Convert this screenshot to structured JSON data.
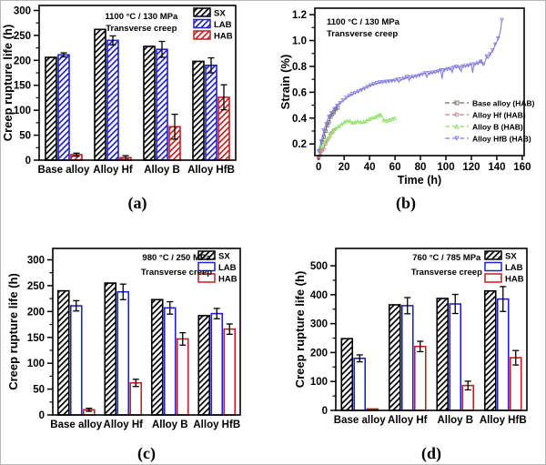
{
  "figure": {
    "background": "#ffffff",
    "accent_blue": "#2121cc",
    "accent_red": "#c22020"
  },
  "chart_data": [
    {
      "type": "bar",
      "panel": "a",
      "panel_label": "(a)",
      "title_lines": [
        "1100 °C / 130 MPa",
        "Transverse creep"
      ],
      "ylabel": "Creep rupture life (h)",
      "ylim": [
        0,
        310
      ],
      "yticks": [
        0,
        50,
        100,
        150,
        200,
        250,
        300
      ],
      "ytick_labels": [
        "0",
        "50",
        "100",
        "150",
        "200",
        "250",
        "300"
      ],
      "categories": [
        "Base alloy",
        "Alloy Hf",
        "Alloy B",
        "Alloy HfB"
      ],
      "legend_position": "top-right",
      "series": [
        {
          "name": "SX",
          "color": "#000000",
          "fill": "hatch",
          "values": [
            206,
            262,
            228,
            198
          ],
          "errors": [
            0,
            0,
            0,
            0
          ]
        },
        {
          "name": "LAB",
          "color": "#2121cc",
          "fill": "hatch",
          "values": [
            211,
            240,
            222,
            190
          ],
          "errors": [
            4,
            9,
            16,
            15
          ]
        },
        {
          "name": "HAB",
          "color": "#c22020",
          "fill": "hatch",
          "values": [
            11,
            5,
            67,
            126
          ],
          "errors": [
            3,
            4,
            25,
            25
          ]
        }
      ]
    },
    {
      "type": "line",
      "panel": "b",
      "panel_label": "(b)",
      "title_lines": [
        "1100 °C / 130 MPa",
        "Transverse creep"
      ],
      "xlabel": "Time (h)",
      "ylabel": "Strain (%)",
      "xlim": [
        -3,
        161.5
      ],
      "xticks": [
        0,
        20,
        40,
        60,
        80,
        100,
        120,
        140,
        160
      ],
      "xtick_labels": [
        "0",
        "20",
        "40",
        "60",
        "80",
        "100",
        "120",
        "140",
        "160"
      ],
      "ylim": [
        0.11,
        1.25
      ],
      "yticks": [
        0.2,
        0.4,
        0.6,
        0.8,
        1.0,
        1.2
      ],
      "ytick_labels": [
        "0.2",
        "0.4",
        "0.6",
        "0.8",
        "1.0",
        "1.2"
      ],
      "legend_position": "middle-right",
      "series": [
        {
          "name": "Base alloy (HAB)",
          "color": "#6b6b6b",
          "marker": "square",
          "points": [
            [
              0,
              0.1
            ],
            [
              2,
              0.18
            ],
            [
              4,
              0.26
            ],
            [
              6,
              0.32
            ],
            [
              8,
              0.375
            ],
            [
              10,
              0.42
            ],
            [
              12,
              0.45
            ],
            [
              14,
              0.47
            ],
            [
              15,
              0.48
            ]
          ]
        },
        {
          "name": "Alloy Hf (HAB)",
          "color": "#c98282",
          "marker": "circle",
          "points": [
            [
              0,
              0.09
            ],
            [
              2,
              0.13
            ],
            [
              4,
              0.17
            ],
            [
              6,
              0.21
            ],
            [
              8,
              0.25
            ],
            [
              10,
              0.285
            ],
            [
              12,
              0.31
            ],
            [
              13,
              0.32
            ]
          ]
        },
        {
          "name": "Alloy B (HAB)",
          "color": "#8fe268",
          "marker": "triangle-up",
          "points": [
            [
              0,
              0.15
            ],
            [
              3,
              0.185
            ],
            [
              6,
              0.23
            ],
            [
              9,
              0.265
            ],
            [
              12,
              0.3
            ],
            [
              15,
              0.33
            ],
            [
              18,
              0.355
            ],
            [
              21,
              0.37
            ],
            [
              23,
              0.38
            ],
            [
              25,
              0.37
            ],
            [
              27,
              0.36
            ],
            [
              30,
              0.37
            ],
            [
              33,
              0.365
            ],
            [
              36,
              0.375
            ],
            [
              39,
              0.385
            ],
            [
              42,
              0.4
            ],
            [
              45,
              0.415
            ],
            [
              48,
              0.428
            ],
            [
              50,
              0.41
            ],
            [
              51,
              0.385
            ],
            [
              54,
              0.387
            ],
            [
              57,
              0.392
            ],
            [
              60,
              0.4
            ]
          ]
        },
        {
          "name": "Alloy HfB (HAB)",
          "color": "#857ce0",
          "marker": "triangle-down",
          "points": [
            [
              0,
              0.14
            ],
            [
              2,
              0.22
            ],
            [
              4,
              0.3
            ],
            [
              6,
              0.36
            ],
            [
              8,
              0.41
            ],
            [
              10,
              0.445
            ],
            [
              13,
              0.48
            ],
            [
              16,
              0.51
            ],
            [
              20,
              0.545
            ],
            [
              24,
              0.575
            ],
            [
              28,
              0.595
            ],
            [
              32,
              0.615
            ],
            [
              36,
              0.632
            ],
            [
              40,
              0.648
            ],
            [
              44,
              0.66
            ],
            [
              48,
              0.67
            ],
            [
              52,
              0.68
            ],
            [
              56,
              0.688
            ],
            [
              60,
              0.695
            ],
            [
              62,
              0.7
            ],
            [
              63,
              0.675
            ],
            [
              64,
              0.7
            ],
            [
              68,
              0.71
            ],
            [
              70,
              0.715
            ],
            [
              71,
              0.69
            ],
            [
              72,
              0.715
            ],
            [
              76,
              0.725
            ],
            [
              80,
              0.735
            ],
            [
              84,
              0.745
            ],
            [
              85,
              0.715
            ],
            [
              86,
              0.745
            ],
            [
              90,
              0.755
            ],
            [
              94,
              0.765
            ],
            [
              96,
              0.77
            ],
            [
              97,
              0.7
            ],
            [
              98,
              0.772
            ],
            [
              102,
              0.78
            ],
            [
              104,
              0.785
            ],
            [
              105,
              0.755
            ],
            [
              106,
              0.786
            ],
            [
              110,
              0.795
            ],
            [
              112,
              0.765
            ],
            [
              113,
              0.8
            ],
            [
              117,
              0.81
            ],
            [
              120,
              0.817
            ],
            [
              121,
              0.752
            ],
            [
              122,
              0.82
            ],
            [
              126,
              0.83
            ],
            [
              128,
              0.84
            ],
            [
              130,
              0.812
            ],
            [
              131,
              0.85
            ],
            [
              132,
              0.872
            ],
            [
              133,
              0.862
            ],
            [
              134,
              0.88
            ],
            [
              136,
              0.91
            ],
            [
              138,
              0.95
            ],
            [
              140,
              0.99
            ],
            [
              141,
              1.01
            ],
            [
              142,
              1.04
            ],
            [
              143,
              1.08
            ],
            [
              144,
              1.16
            ]
          ]
        }
      ]
    },
    {
      "type": "bar",
      "panel": "c",
      "panel_label": "(c)",
      "title_lines": [
        "980 °C / 250 MPa",
        "Transverse creep"
      ],
      "ylabel": "Creep rupture life (h)",
      "ylim": [
        0,
        322
      ],
      "yticks": [
        0,
        50,
        100,
        150,
        200,
        250,
        300
      ],
      "ytick_labels": [
        "0",
        "50",
        "100",
        "150",
        "200",
        "250",
        "300"
      ],
      "categories": [
        "Base alloy",
        "Alloy Hf",
        "Alloy B",
        "Alloy HfB"
      ],
      "legend_position": "top-right",
      "series": [
        {
          "name": "SX",
          "color": "#000000",
          "fill": "hatch",
          "values": [
            240,
            255,
            223,
            192
          ],
          "errors": [
            0,
            0,
            0,
            0
          ]
        },
        {
          "name": "LAB",
          "color": "#2121cc",
          "fill": "open",
          "values": [
            211,
            238,
            207,
            196
          ],
          "errors": [
            10,
            15,
            12,
            10
          ]
        },
        {
          "name": "HAB",
          "color": "#c22020",
          "fill": "open",
          "values": [
            10,
            62,
            147,
            166
          ],
          "errors": [
            3,
            7,
            12,
            10
          ]
        }
      ]
    },
    {
      "type": "bar",
      "panel": "d",
      "panel_label": "(d)",
      "title_lines": [
        "760 °C / 785 MPa",
        "Transverse creep"
      ],
      "ylabel": "Creep rupture life (h)",
      "ylim": [
        0,
        560
      ],
      "yticks": [
        0,
        100,
        200,
        300,
        400,
        500
      ],
      "ytick_labels": [
        "0",
        "100",
        "200",
        "300",
        "400",
        "500"
      ],
      "categories": [
        "Base alloy",
        "Alloy Hf",
        "Alloy B",
        "Alloy HfB"
      ],
      "legend_position": "top-right",
      "series": [
        {
          "name": "SX",
          "color": "#000000",
          "fill": "hatch",
          "values": [
            248,
            365,
            387,
            413
          ],
          "errors": [
            0,
            0,
            0,
            0
          ]
        },
        {
          "name": "LAB",
          "color": "#2121cc",
          "fill": "open",
          "values": [
            180,
            362,
            368,
            385
          ],
          "errors": [
            12,
            28,
            33,
            43
          ]
        },
        {
          "name": "HAB",
          "color": "#c22020",
          "fill": "open",
          "values": [
            5,
            221,
            86,
            182
          ],
          "errors": [
            0,
            18,
            15,
            25
          ]
        }
      ]
    }
  ]
}
